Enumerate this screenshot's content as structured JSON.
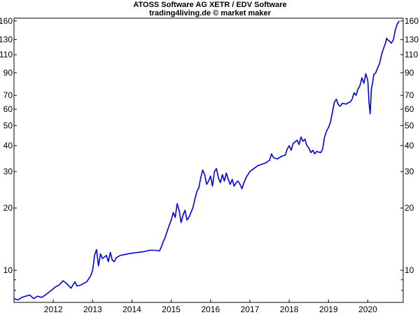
{
  "chart_data": {
    "type": "line",
    "title": "ATOSS Software AG XETR / EDV Software",
    "subtitle": "trading4living.de © market maker",
    "xlabel": "",
    "ylabel": "",
    "y_scale": "log",
    "grid": false,
    "axis_labels_sides": "left and right",
    "line_color": "#0000dd",
    "xlim": [
      2011.0,
      2020.9
    ],
    "ylim": [
      7.0,
      165
    ],
    "x_ticks": [
      {
        "label": "2012",
        "value": 2012
      },
      {
        "label": "2013",
        "value": 2013
      },
      {
        "label": "2014",
        "value": 2014
      },
      {
        "label": "2015",
        "value": 2015
      },
      {
        "label": "2016",
        "value": 2016
      },
      {
        "label": "2017",
        "value": 2017
      },
      {
        "label": "2018",
        "value": 2018
      },
      {
        "label": "2019",
        "value": 2019
      },
      {
        "label": "2020",
        "value": 2020
      }
    ],
    "y_ticks": [
      {
        "label": "10",
        "value": 10
      },
      {
        "label": "20",
        "value": 20
      },
      {
        "label": "30",
        "value": 30
      },
      {
        "label": "40",
        "value": 40
      },
      {
        "label": "50",
        "value": 50
      },
      {
        "label": "60",
        "value": 60
      },
      {
        "label": "70",
        "value": 70
      },
      {
        "label": "90",
        "value": 90
      },
      {
        "label": "110",
        "value": 110
      },
      {
        "label": "130",
        "value": 130
      },
      {
        "label": "160",
        "value": 160
      }
    ],
    "y_minor_ticks": [
      8,
      9
    ],
    "series": [
      {
        "values": [
          [
            2011.0,
            7.3
          ],
          [
            2011.1,
            7.2
          ],
          [
            2011.2,
            7.4
          ],
          [
            2011.3,
            7.5
          ],
          [
            2011.4,
            7.6
          ],
          [
            2011.5,
            7.3
          ],
          [
            2011.6,
            7.5
          ],
          [
            2011.7,
            7.4
          ],
          [
            2011.8,
            7.6
          ],
          [
            2011.95,
            8.0
          ],
          [
            2012.05,
            8.3
          ],
          [
            2012.15,
            8.5
          ],
          [
            2012.25,
            8.9
          ],
          [
            2012.35,
            8.6
          ],
          [
            2012.45,
            8.2
          ],
          [
            2012.55,
            8.8
          ],
          [
            2012.6,
            8.4
          ],
          [
            2012.7,
            8.5
          ],
          [
            2012.85,
            8.8
          ],
          [
            2012.95,
            9.4
          ],
          [
            2013.0,
            10.0
          ],
          [
            2013.05,
            11.8
          ],
          [
            2013.1,
            12.6
          ],
          [
            2013.15,
            10.5
          ],
          [
            2013.2,
            12.0
          ],
          [
            2013.25,
            11.4
          ],
          [
            2013.35,
            11.8
          ],
          [
            2013.4,
            11.0
          ],
          [
            2013.45,
            12.2
          ],
          [
            2013.5,
            11.2
          ],
          [
            2013.55,
            11.0
          ],
          [
            2013.6,
            11.5
          ],
          [
            2013.7,
            11.8
          ],
          [
            2013.8,
            11.9
          ],
          [
            2013.9,
            12.0
          ],
          [
            2014.0,
            12.1
          ],
          [
            2014.15,
            12.2
          ],
          [
            2014.3,
            12.3
          ],
          [
            2014.45,
            12.5
          ],
          [
            2014.6,
            12.5
          ],
          [
            2014.7,
            12.4
          ],
          [
            2014.75,
            13.0
          ],
          [
            2014.8,
            13.8
          ],
          [
            2014.85,
            14.5
          ],
          [
            2014.9,
            15.5
          ],
          [
            2014.95,
            16.5
          ],
          [
            2015.0,
            17.5
          ],
          [
            2015.05,
            19.0
          ],
          [
            2015.1,
            18.0
          ],
          [
            2015.15,
            21.0
          ],
          [
            2015.2,
            19.5
          ],
          [
            2015.25,
            17.0
          ],
          [
            2015.3,
            18.5
          ],
          [
            2015.35,
            19.5
          ],
          [
            2015.4,
            17.5
          ],
          [
            2015.45,
            18.0
          ],
          [
            2015.5,
            19.0
          ],
          [
            2015.55,
            20.0
          ],
          [
            2015.6,
            22.0
          ],
          [
            2015.65,
            24.0
          ],
          [
            2015.7,
            25.0
          ],
          [
            2015.75,
            28.0
          ],
          [
            2015.8,
            30.5
          ],
          [
            2015.85,
            29.0
          ],
          [
            2015.9,
            26.0
          ],
          [
            2015.95,
            27.0
          ],
          [
            2016.0,
            28.5
          ],
          [
            2016.05,
            25.5
          ],
          [
            2016.1,
            30.0
          ],
          [
            2016.15,
            31.0
          ],
          [
            2016.2,
            28.0
          ],
          [
            2016.25,
            26.5
          ],
          [
            2016.3,
            29.0
          ],
          [
            2016.35,
            27.0
          ],
          [
            2016.4,
            29.5
          ],
          [
            2016.45,
            27.5
          ],
          [
            2016.5,
            26.0
          ],
          [
            2016.55,
            27.5
          ],
          [
            2016.6,
            25.5
          ],
          [
            2016.65,
            26.5
          ],
          [
            2016.7,
            27.0
          ],
          [
            2016.75,
            26.0
          ],
          [
            2016.8,
            24.8
          ],
          [
            2016.85,
            26.5
          ],
          [
            2016.9,
            28.0
          ],
          [
            2016.95,
            29.0
          ],
          [
            2017.0,
            30.0
          ],
          [
            2017.1,
            31.0
          ],
          [
            2017.2,
            32.0
          ],
          [
            2017.3,
            32.5
          ],
          [
            2017.4,
            33.0
          ],
          [
            2017.5,
            34.0
          ],
          [
            2017.55,
            36.5
          ],
          [
            2017.6,
            35.0
          ],
          [
            2017.7,
            34.5
          ],
          [
            2017.8,
            35.5
          ],
          [
            2017.9,
            36.0
          ],
          [
            2017.95,
            38.5
          ],
          [
            2018.0,
            40.0
          ],
          [
            2018.05,
            38.0
          ],
          [
            2018.1,
            41.0
          ],
          [
            2018.2,
            42.5
          ],
          [
            2018.25,
            40.5
          ],
          [
            2018.3,
            44.0
          ],
          [
            2018.35,
            42.0
          ],
          [
            2018.4,
            43.0
          ],
          [
            2018.45,
            40.0
          ],
          [
            2018.5,
            39.0
          ],
          [
            2018.55,
            37.0
          ],
          [
            2018.6,
            38.0
          ],
          [
            2018.65,
            36.5
          ],
          [
            2018.7,
            37.5
          ],
          [
            2018.8,
            37.0
          ],
          [
            2018.85,
            38.5
          ],
          [
            2018.9,
            44.0
          ],
          [
            2018.95,
            47.0
          ],
          [
            2019.0,
            49.0
          ],
          [
            2019.05,
            52.0
          ],
          [
            2019.1,
            58.0
          ],
          [
            2019.15,
            65.0
          ],
          [
            2019.2,
            67.0
          ],
          [
            2019.25,
            63.0
          ],
          [
            2019.3,
            62.0
          ],
          [
            2019.35,
            64.0
          ],
          [
            2019.45,
            63.5
          ],
          [
            2019.5,
            64.5
          ],
          [
            2019.55,
            65.0
          ],
          [
            2019.6,
            67.0
          ],
          [
            2019.65,
            72.0
          ],
          [
            2019.7,
            70.0
          ],
          [
            2019.75,
            75.0
          ],
          [
            2019.8,
            78.0
          ],
          [
            2019.85,
            85.0
          ],
          [
            2019.9,
            80.0
          ],
          [
            2019.95,
            89.0
          ],
          [
            2020.0,
            82.0
          ],
          [
            2020.03,
            65.0
          ],
          [
            2020.06,
            57.0
          ],
          [
            2020.09,
            75.0
          ],
          [
            2020.12,
            80.0
          ],
          [
            2020.15,
            88.0
          ],
          [
            2020.2,
            90.0
          ],
          [
            2020.25,
            95.0
          ],
          [
            2020.3,
            100.0
          ],
          [
            2020.35,
            110.0
          ],
          [
            2020.4,
            118.0
          ],
          [
            2020.45,
            125.0
          ],
          [
            2020.48,
            132.0
          ],
          [
            2020.5,
            130.0
          ],
          [
            2020.55,
            128.0
          ],
          [
            2020.6,
            125.0
          ],
          [
            2020.65,
            130.0
          ],
          [
            2020.7,
            145.0
          ],
          [
            2020.75,
            155.0
          ],
          [
            2020.8,
            160.0
          ]
        ]
      }
    ]
  }
}
